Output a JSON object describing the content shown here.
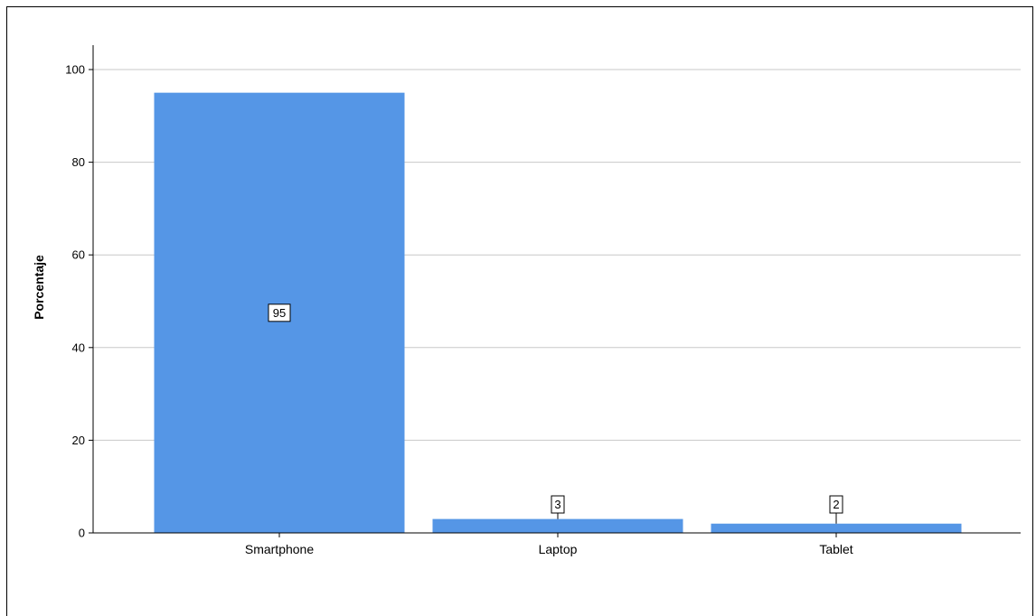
{
  "chart_data": {
    "type": "bar",
    "categories": [
      "Smartphone",
      "Laptop",
      "Tablet"
    ],
    "values": [
      95,
      3,
      2
    ],
    "data_labels": [
      "95",
      "3",
      "2"
    ],
    "title": "",
    "xlabel": "",
    "ylabel": "Porcentaje",
    "ylim": [
      0,
      105
    ],
    "yticks": [
      0,
      20,
      40,
      60,
      80,
      100
    ],
    "grid": true,
    "bar_color": "#5596E6",
    "gridline_color": "#c8c8c8"
  }
}
